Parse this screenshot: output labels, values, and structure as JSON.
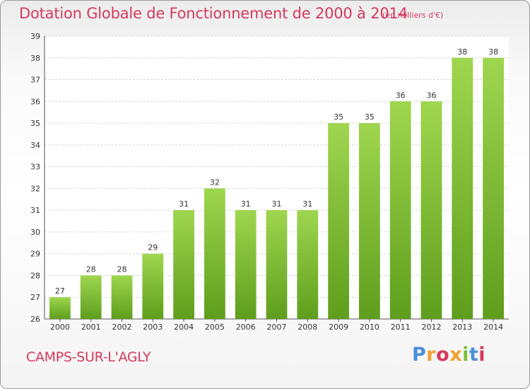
{
  "title": "Dotation Globale de Fonctionnement de 2000 à 2014",
  "unit_note": "(en milliers d'€)",
  "commune": "CAMPS-SUR-L'AGLY",
  "logo": {
    "letters": [
      "P",
      "r",
      "o",
      "x",
      "i",
      "t",
      "i"
    ],
    "colors": [
      "#4a90d9",
      "#f0a030",
      "#d4395c",
      "#f0a030",
      "#7bbf3a",
      "#4a90d9",
      "#d4395c"
    ]
  },
  "colors": {
    "bar_top": "#9fd64f",
    "bar_bottom": "#5e9e1c",
    "text_accent": "#d4395c"
  },
  "chart_data": {
    "type": "bar",
    "categories": [
      "2000",
      "2001",
      "2002",
      "2003",
      "2004",
      "2005",
      "2006",
      "2007",
      "2008",
      "2009",
      "2010",
      "2011",
      "2012",
      "2013",
      "2014"
    ],
    "values": [
      27,
      28,
      28,
      29,
      31,
      32,
      31,
      31,
      31,
      35,
      35,
      36,
      36,
      38,
      38
    ],
    "ylim": [
      26,
      39
    ],
    "yticks": [
      "26",
      "27",
      "28",
      "29",
      "30",
      "31",
      "32",
      "33",
      "34",
      "35",
      "36",
      "37",
      "38",
      "39"
    ],
    "grid": true
  }
}
